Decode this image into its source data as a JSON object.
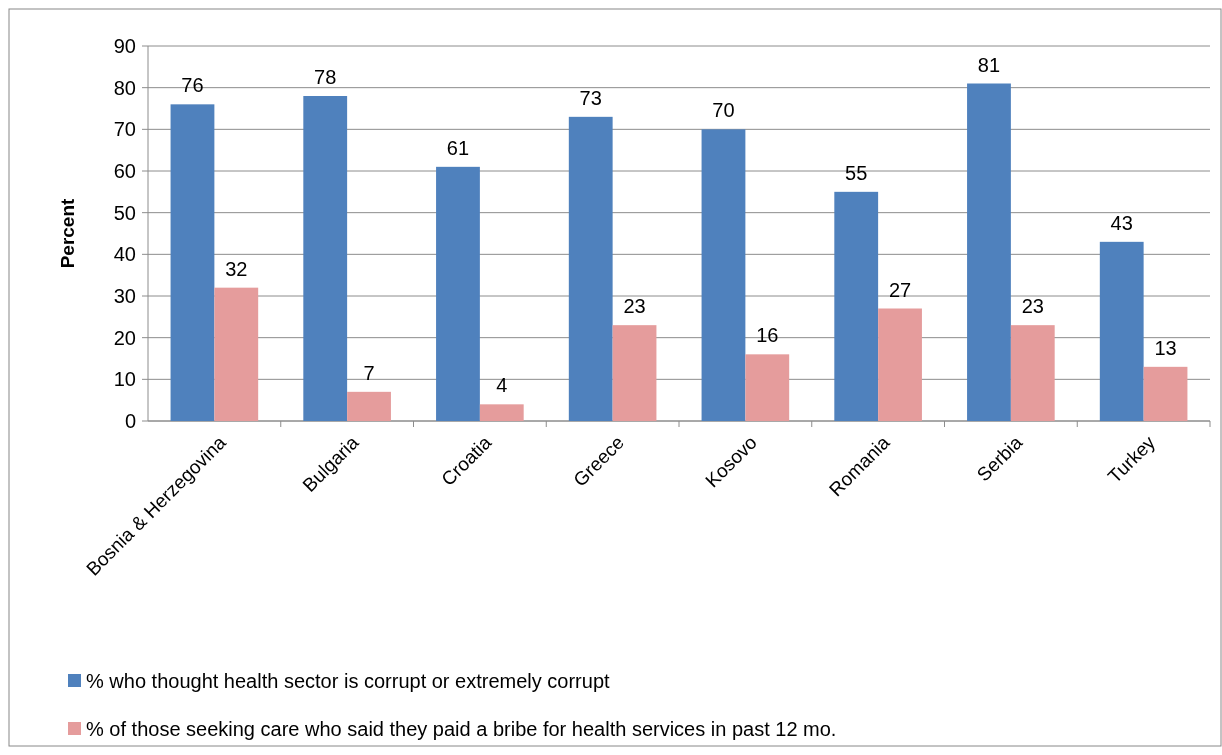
{
  "chart_data": {
    "type": "bar",
    "ylabel": "Percent",
    "categories": [
      "Bosnia & Herzegovina",
      "Bulgaria",
      "Croatia",
      "Greece",
      "Kosovo",
      "Romania",
      "Serbia",
      "Turkey"
    ],
    "series": [
      {
        "name": "% who thought health sector is corrupt or extremely corrupt",
        "color": "#4f81bd",
        "values": [
          76,
          78,
          61,
          73,
          70,
          55,
          81,
          43
        ]
      },
      {
        "name": "% of those seeking care who said they paid a bribe for health services in past 12 mo.",
        "color": "#e59c9c",
        "values": [
          32,
          7,
          4,
          23,
          16,
          27,
          23,
          13
        ]
      }
    ],
    "ylim": [
      0,
      90
    ],
    "yticks": [
      0,
      10,
      20,
      30,
      40,
      50,
      60,
      70,
      80,
      90
    ],
    "grid": "y",
    "data_labels": true,
    "legend": "bottom"
  }
}
